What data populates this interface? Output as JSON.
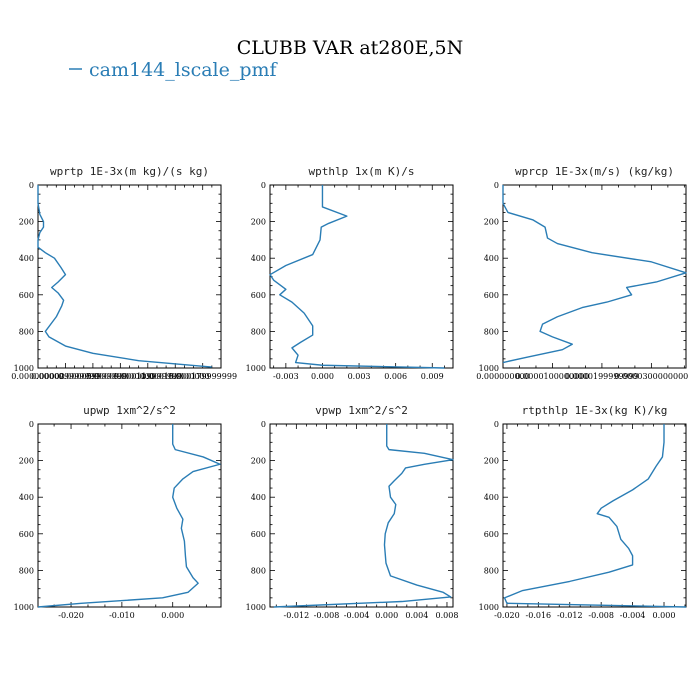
{
  "figure": {
    "title": "CLUBB VAR at280E,5N",
    "legend_label": "cam144_lscale_pmf",
    "series_color": "#2a7db5"
  },
  "chart_data": [
    {
      "type": "line",
      "title": "wprtp  1E-3x(m kg)/(s kg)",
      "series_name": "cam144_lscale_pmf",
      "xlim": [
        0.0,
        0.0002
      ],
      "ylim": [
        1000,
        0
      ],
      "xticks": [
        0.0,
        3e-05,
        6e-05,
        9e-05,
        0.00012,
        0.00015,
        0.00018
      ],
      "xtick_labels": [
        "0.000000000",
        "0.000029999999",
        "0.000059999999",
        "0.000090000000",
        "0.000119999999",
        "0.000150000000",
        "0.000179999999"
      ],
      "yticks": [
        0,
        200,
        400,
        600,
        800,
        1000
      ],
      "ytick_labels": [
        "0",
        "200",
        "400",
        "600",
        "800",
        "1000"
      ],
      "points": [
        [
          0.0,
          0
        ],
        [
          0.0,
          50
        ],
        [
          0.0,
          100
        ],
        [
          2e-06,
          160
        ],
        [
          6e-06,
          200
        ],
        [
          6e-06,
          230
        ],
        [
          2e-06,
          260
        ],
        [
          0.0,
          300
        ],
        [
          0.0,
          340
        ],
        [
          8e-06,
          370
        ],
        [
          1.8e-05,
          400
        ],
        [
          2.5e-05,
          450
        ],
        [
          3e-05,
          490
        ],
        [
          2.2e-05,
          530
        ],
        [
          1.5e-05,
          560
        ],
        [
          2.2e-05,
          590
        ],
        [
          2.8e-05,
          630
        ],
        [
          2.6e-05,
          660
        ],
        [
          2e-05,
          720
        ],
        [
          8e-06,
          800
        ],
        [
          1.2e-05,
          830
        ],
        [
          3e-05,
          880
        ],
        [
          6e-05,
          920
        ],
        [
          0.00011,
          960
        ],
        [
          0.00019,
          995
        ]
      ]
    },
    {
      "type": "line",
      "title": "wpthlp  1x(m K)/s",
      "series_name": "cam144_lscale_pmf",
      "xlim": [
        -0.0043,
        0.0107
      ],
      "ylim": [
        1000,
        0
      ],
      "xticks": [
        -0.003,
        0.0,
        0.003,
        0.006,
        0.009
      ],
      "xtick_labels": [
        "-0.003",
        "0.000",
        "0.003",
        "0.006",
        "0.009"
      ],
      "yticks": [
        0,
        200,
        400,
        600,
        800,
        1000
      ],
      "ytick_labels": [
        "0",
        "200",
        "400",
        "600",
        "800",
        "1000"
      ],
      "points": [
        [
          0.0,
          0
        ],
        [
          0.0,
          120
        ],
        [
          0.002,
          170
        ],
        [
          0.0005,
          210
        ],
        [
          -0.0001,
          230
        ],
        [
          -0.0002,
          300
        ],
        [
          -0.0008,
          380
        ],
        [
          -0.003,
          440
        ],
        [
          -0.0043,
          490
        ],
        [
          -0.004,
          520
        ],
        [
          -0.003,
          570
        ],
        [
          -0.0035,
          600
        ],
        [
          -0.0025,
          640
        ],
        [
          -0.0015,
          700
        ],
        [
          -0.0008,
          770
        ],
        [
          -0.0008,
          820
        ],
        [
          -0.0018,
          860
        ],
        [
          -0.0025,
          890
        ],
        [
          -0.002,
          930
        ],
        [
          -0.0022,
          970
        ],
        [
          0.0,
          985
        ],
        [
          0.01,
          1000
        ]
      ]
    },
    {
      "type": "line",
      "title": "wprcp  1E-3x(m/s) (kg/kg)",
      "series_name": "cam144_lscale_pmf",
      "xlim": [
        0.0,
        3.7e-05
      ],
      "ylim": [
        1000,
        0
      ],
      "xticks": [
        0.0,
        1e-05,
        2e-05,
        3e-05
      ],
      "xtick_labels": [
        "0.000000000",
        "0.0000100000000",
        "0.0000199999999",
        "0.0000300000000"
      ],
      "yticks": [
        0,
        200,
        400,
        600,
        800,
        1000
      ],
      "ytick_labels": [
        "0",
        "200",
        "400",
        "600",
        "800",
        "1000"
      ],
      "points": [
        [
          0.0,
          0
        ],
        [
          0.0,
          100
        ],
        [
          1e-06,
          150
        ],
        [
          6e-06,
          190
        ],
        [
          8.5e-06,
          230
        ],
        [
          9e-06,
          290
        ],
        [
          1.1e-05,
          320
        ],
        [
          1.8e-05,
          370
        ],
        [
          3e-05,
          420
        ],
        [
          3.7e-05,
          480
        ],
        [
          3.1e-05,
          530
        ],
        [
          2.5e-05,
          560
        ],
        [
          2.6e-05,
          600
        ],
        [
          2.1e-05,
          640
        ],
        [
          1.6e-05,
          670
        ],
        [
          1.1e-05,
          720
        ],
        [
          8e-06,
          760
        ],
        [
          7.5e-06,
          800
        ],
        [
          1e-05,
          830
        ],
        [
          1.4e-05,
          870
        ],
        [
          1.2e-05,
          900
        ],
        [
          5e-06,
          940
        ],
        [
          0.0,
          970
        ]
      ]
    },
    {
      "type": "line",
      "title": "upwp  1xm^2/s^2",
      "series_name": "cam144_lscale_pmf",
      "xlim": [
        -0.0265,
        0.0095
      ],
      "ylim": [
        1000,
        0
      ],
      "xticks": [
        -0.02,
        -0.01,
        0.0
      ],
      "xtick_labels": [
        "-0.020",
        "-0.010",
        "0.000"
      ],
      "yticks": [
        0,
        200,
        400,
        600,
        800,
        1000
      ],
      "ytick_labels": [
        "0",
        "200",
        "400",
        "600",
        "800",
        "1000"
      ],
      "points": [
        [
          0.0,
          0
        ],
        [
          0.0,
          110
        ],
        [
          0.0005,
          140
        ],
        [
          0.006,
          180
        ],
        [
          0.0093,
          220
        ],
        [
          0.004,
          260
        ],
        [
          0.002,
          300
        ],
        [
          0.0003,
          350
        ],
        [
          0.0,
          400
        ],
        [
          0.0008,
          460
        ],
        [
          0.002,
          520
        ],
        [
          0.0017,
          570
        ],
        [
          0.0023,
          640
        ],
        [
          0.0025,
          720
        ],
        [
          0.0027,
          780
        ],
        [
          0.004,
          840
        ],
        [
          0.005,
          870
        ],
        [
          0.003,
          920
        ],
        [
          -0.002,
          950
        ],
        [
          -0.018,
          980
        ],
        [
          -0.0265,
          1000
        ]
      ]
    },
    {
      "type": "line",
      "title": "vpwp  1xm^2/s^2",
      "series_name": "cam144_lscale_pmf",
      "xlim": [
        -0.0155,
        0.0088
      ],
      "ylim": [
        1000,
        0
      ],
      "xticks": [
        -0.012,
        -0.008,
        -0.004,
        0.0,
        0.004,
        0.008
      ],
      "xtick_labels": [
        "-0.012",
        "-0.008",
        "-0.004",
        "0.000",
        "0.004",
        "0.008"
      ],
      "yticks": [
        0,
        200,
        400,
        600,
        800,
        1000
      ],
      "ytick_labels": [
        "0",
        "200",
        "400",
        "600",
        "800",
        "1000"
      ],
      "points": [
        [
          0.0,
          0
        ],
        [
          0.0,
          120
        ],
        [
          0.0003,
          140
        ],
        [
          0.005,
          160
        ],
        [
          0.0088,
          195
        ],
        [
          0.005,
          220
        ],
        [
          0.0025,
          240
        ],
        [
          0.002,
          270
        ],
        [
          0.001,
          310
        ],
        [
          0.0003,
          340
        ],
        [
          0.0005,
          400
        ],
        [
          0.0012,
          440
        ],
        [
          0.001,
          490
        ],
        [
          0.0002,
          540
        ],
        [
          -0.0002,
          600
        ],
        [
          -0.0003,
          660
        ],
        [
          -0.0001,
          760
        ],
        [
          0.0005,
          830
        ],
        [
          0.004,
          880
        ],
        [
          0.0075,
          920
        ],
        [
          0.0085,
          945
        ],
        [
          0.002,
          970
        ],
        [
          -0.015,
          1000
        ]
      ]
    },
    {
      "type": "line",
      "title": "rtpthlp  1E-3x(kg K)/kg",
      "series_name": "cam144_lscale_pmf",
      "xlim": [
        -0.0205,
        0.0028
      ],
      "ylim": [
        1000,
        0
      ],
      "xticks": [
        -0.02,
        -0.016,
        -0.012,
        -0.008,
        -0.004,
        0.0
      ],
      "xtick_labels": [
        "-0.020",
        "-0.016",
        "-0.012",
        "-0.008",
        "-0.004",
        "0.000"
      ],
      "yticks": [
        0,
        200,
        400,
        600,
        800,
        1000
      ],
      "ytick_labels": [
        "0",
        "200",
        "400",
        "600",
        "800",
        "1000"
      ],
      "points": [
        [
          0.0,
          0
        ],
        [
          0.0,
          100
        ],
        [
          -0.0002,
          180
        ],
        [
          -0.001,
          230
        ],
        [
          -0.002,
          300
        ],
        [
          -0.004,
          360
        ],
        [
          -0.0065,
          420
        ],
        [
          -0.008,
          460
        ],
        [
          -0.0085,
          490
        ],
        [
          -0.007,
          510
        ],
        [
          -0.006,
          560
        ],
        [
          -0.0055,
          630
        ],
        [
          -0.0045,
          680
        ],
        [
          -0.004,
          720
        ],
        [
          -0.004,
          770
        ],
        [
          -0.007,
          810
        ],
        [
          -0.012,
          860
        ],
        [
          -0.018,
          910
        ],
        [
          -0.0203,
          950
        ],
        [
          -0.02,
          980
        ],
        [
          0.0028,
          1000
        ]
      ]
    }
  ]
}
